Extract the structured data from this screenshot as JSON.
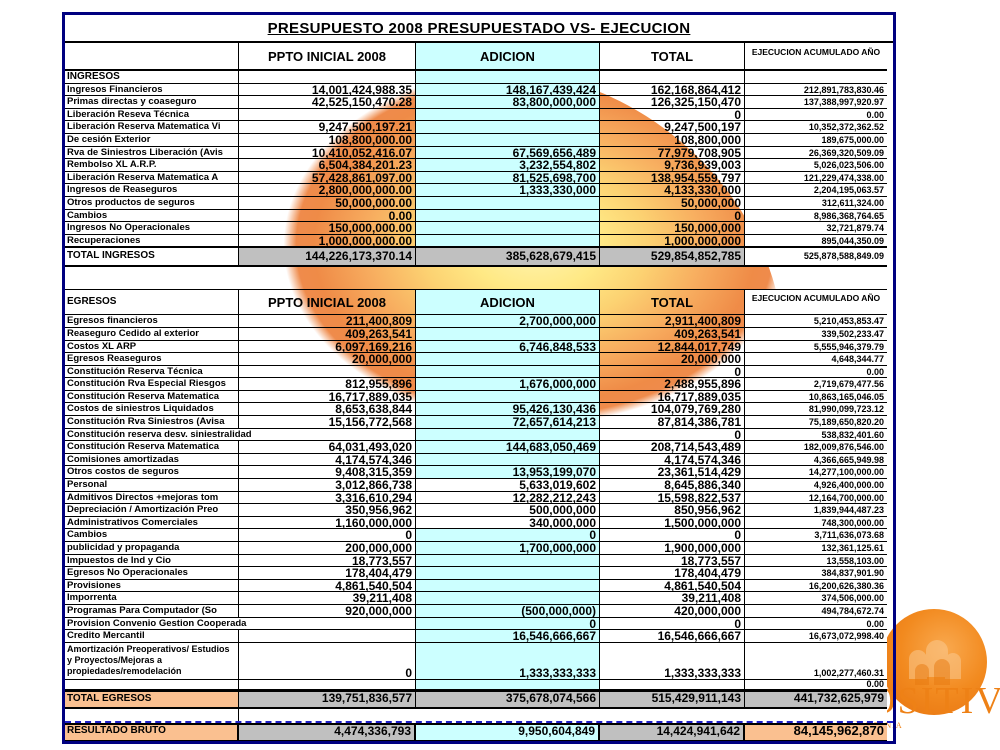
{
  "title": "PRESUPUESTO  2008 PRESUPUESTADO VS- EJECUCION",
  "columns": {
    "label": "",
    "ppto": "PPTO INICIAL 2008",
    "adicion": "ADICION",
    "total": "TOTAL",
    "ejecucion": "EJECUCION  ACUMULADO AÑO"
  },
  "logo": {
    "brand": "POSITIVA",
    "tagline": "Compañía de Seguros",
    "brand_color": "#ee8116",
    "circle_color": "#f28a1f"
  },
  "colors": {
    "adicion_fill": "#CCFFFF",
    "total_fill": "#C0C0C0",
    "highlight_fill": "#FAC090",
    "outer_border": "#000080",
    "dashed_line": "#2020c8"
  },
  "rows": [
    {
      "t": "sec",
      "label": "INGRESOS"
    },
    {
      "t": "d",
      "label": "Ingresos Financieros",
      "ppto": "14,001,424,988.35",
      "adic": "148,167,439,424",
      "total": "162,168,864,412",
      "ejec": "212,891,783,830.46"
    },
    {
      "t": "d",
      "label": "Primas directas y coaseguro",
      "ppto": "42,525,150,470.28",
      "adic": "83,800,000,000",
      "total": "126,325,150,470",
      "ejec": "137,388,997,920.97"
    },
    {
      "t": "d",
      "label": "Liberación Reseva Técnica",
      "ppto": "",
      "adic": "",
      "total": "0",
      "ejec": "0.00"
    },
    {
      "t": "d",
      "label": "Liberación Reserva Matematica Vi",
      "ppto": "9,247,500,197.21",
      "adic": "",
      "total": "9,247,500,197",
      "ejec": "10,352,372,362.52"
    },
    {
      "t": "d",
      "label": "De cesión  Exterior",
      "ppto": "108,800,000.00",
      "adic": "",
      "total": "108,800,000",
      "ejec": "189,675,000.00"
    },
    {
      "t": "d",
      "label": "Rva de Siniestros Liberación (Avis",
      "ppto": "10,410,052,416.07",
      "adic": "67,569,656,489",
      "total": "77,979,708,905",
      "ejec": "26,369,320,509.09"
    },
    {
      "t": "d",
      "label": "Rembolso XL A.R.P.",
      "ppto": "6,504,384,201.23",
      "adic": "3,232,554,802",
      "total": "9,736,939,003",
      "ejec": "5,026,023,506.00"
    },
    {
      "t": "d",
      "label": "Liberación Reserva Matematica A",
      "ppto": "57,428,861,097.00",
      "adic": "81,525,698,700",
      "total": "138,954,559,797",
      "ejec": "121,229,474,338.00"
    },
    {
      "t": "d",
      "label": "Ingresos de Reaseguros",
      "ppto": "2,800,000,000.00",
      "adic": "1,333,330,000",
      "total": "4,133,330,000",
      "ejec": "2,204,195,063.57"
    },
    {
      "t": "d",
      "label": "Otros productos de seguros",
      "ppto": "50,000,000.00",
      "adic": "",
      "total": "50,000,000",
      "ejec": "312,611,324.00"
    },
    {
      "t": "d",
      "label": "Cambios",
      "ppto": "0.00",
      "adic": "",
      "total": "0",
      "ejec": "8,986,368,764.65"
    },
    {
      "t": "d",
      "label": "Ingresos No Operacionales",
      "ppto": "150,000,000.00",
      "adic": "",
      "total": "150,000,000",
      "ejec": "32,721,879.74"
    },
    {
      "t": "d",
      "label": "Recuperaciones",
      "ppto": "1,000,000,000.00",
      "adic": "",
      "total": "1,000,000,000",
      "ejec": "895,044,350.09"
    },
    {
      "t": "tin",
      "label": "TOTAL  INGRESOS",
      "ppto": "144,226,173,370.14",
      "adic": "385,628,679,415",
      "total": "529,854,852,785",
      "ejec": "525,878,588,849.09"
    },
    {
      "t": "gap"
    },
    {
      "t": "h2",
      "label": "EGRESOS"
    },
    {
      "t": "d",
      "label": "Egresos financieros",
      "ppto": "211,400,809",
      "adic": "2,700,000,000",
      "total": "2,911,400,809",
      "ejec": "5,210,453,853.47"
    },
    {
      "t": "d",
      "label": "Reaseguro Cedido al exterior",
      "ppto": "409,263,541",
      "adic": "",
      "total": "409,263,541",
      "ejec": "339,502,233.47"
    },
    {
      "t": "d",
      "label": "Costos XL ARP",
      "ppto": "6,097,169,216",
      "adic": "6,746,848,533",
      "total": "12,844,017,749",
      "ejec": "5,555,946,379.79"
    },
    {
      "t": "d",
      "label": "Egresos Reaseguros",
      "ppto": "20,000,000",
      "adic": "",
      "total": "20,000,000",
      "ejec": "4,648,344.77"
    },
    {
      "t": "d",
      "label": "Constitución Reserva Técnica",
      "ppto": "",
      "adic": "",
      "total": "0",
      "ejec": "0.00"
    },
    {
      "t": "d",
      "label": "Constitución Rva Especial Riesgos",
      "ppto": "812,955,896",
      "adic": "1,676,000,000",
      "total": "2,488,955,896",
      "ejec": "2,719,679,477.56"
    },
    {
      "t": "d",
      "label": "Constitución Reserva Matematica",
      "ppto": "16,717,889,035",
      "adic": "",
      "total": "16,717,889,035",
      "ejec": "10,863,165,046.05"
    },
    {
      "t": "d",
      "label": "Costos de siniestros Liquidados",
      "ppto": "8,653,638,844",
      "adic": "95,426,130,436",
      "total": "104,079,769,280",
      "ejec": "81,990,099,723.12"
    },
    {
      "t": "d",
      "label": "Constitución Rva Siniestros (Avisa",
      "ppto": "15,156,772,568",
      "adic": "72,657,614,213",
      "total": "87,814,386,781",
      "ejec": "75,189,650,820.20"
    },
    {
      "t": "d",
      "lo": true,
      "label": "Constitución reserva desv. siniestralidad",
      "ppto": "",
      "adic": "",
      "total": "0",
      "ejec": "538,832,401.60"
    },
    {
      "t": "d",
      "label": "Constitución Reserva Matematica",
      "ppto": "64,031,493,020",
      "adic": "144,683,050,469",
      "total": "208,714,543,489",
      "ejec": "182,009,876,546.00"
    },
    {
      "t": "d",
      "label": "Comisiones amortizadas",
      "ppto": "4,174,574,346",
      "adic": "",
      "total": "4,174,574,346",
      "ejec": "4,366,665,949.98"
    },
    {
      "t": "d",
      "label": "Otros costos de seguros",
      "ppto": "9,408,315,359",
      "adic": "13,953,199,070",
      "total": "23,361,514,429",
      "ejec": "14,277,100,000.00"
    },
    {
      "t": "d",
      "clear": true,
      "label": "Personal",
      "ppto": "3,012,866,738",
      "adic": "5,633,019,602",
      "total": "8,645,886,340",
      "ejec": "4,926,400,000.00"
    },
    {
      "t": "d",
      "clear": true,
      "label": "Admitivos Directos +mejoras tom",
      "ppto": "3,316,610,294",
      "adic": "12,282,212,243",
      "total": "15,598,822,537",
      "ejec": "12,164,700,000.00"
    },
    {
      "t": "d",
      "clear": true,
      "label": "Depreciación / Amortización Preo",
      "ppto": "350,956,962",
      "adic": "500,000,000",
      "total": "850,956,962",
      "ejec": "1,839,944,487.23"
    },
    {
      "t": "d",
      "clear": true,
      "label": "Administrativos Comerciales",
      "ppto": "1,160,000,000",
      "adic": "340,000,000",
      "total": "1,500,000,000",
      "ejec": "748,300,000.00"
    },
    {
      "t": "d",
      "label": "Cambios",
      "ppto": "0",
      "adic": "0",
      "total": "0",
      "ejec": "3,711,636,073.68"
    },
    {
      "t": "d",
      "label": "publicidad y propaganda",
      "ppto": "200,000,000",
      "adic": "1,700,000,000",
      "total": "1,900,000,000",
      "ejec": "132,361,125.61"
    },
    {
      "t": "d",
      "label": "Impuestos de Ind y Cio",
      "ppto": "18,773,557",
      "adic": "",
      "total": "18,773,557",
      "ejec": "13,558,103.00"
    },
    {
      "t": "d",
      "label": "Egresos No Operacionales",
      "ppto": "178,404,479",
      "adic": "",
      "total": "178,404,479",
      "ejec": "384,837,901.90"
    },
    {
      "t": "d",
      "label": "Provisiones",
      "ppto": "4,861,540,504",
      "adic": "",
      "total": "4,861,540,504",
      "ejec": "16,200,626,380.36"
    },
    {
      "t": "d",
      "label": "Imporrenta",
      "ppto": "39,211,408",
      "adic": "",
      "total": "39,211,408",
      "ejec": "374,506,000.00"
    },
    {
      "t": "d",
      "label": "Programas Para Computador (So",
      "ppto": "920,000,000",
      "adic": "(500,000,000)",
      "total": "420,000,000",
      "ejec": "494,784,672.74"
    },
    {
      "t": "d",
      "lo": true,
      "label": "Provision Convenio Gestion Cooperada",
      "ppto": "",
      "adic": "0",
      "total": "0",
      "ejec": "0.00"
    },
    {
      "t": "d",
      "label": "Credito Mercantil",
      "ppto": "",
      "adic": "16,546,666,667",
      "total": "16,546,666,667",
      "ejec": "16,673,072,998.40"
    },
    {
      "t": "ml3",
      "label": "Amortización Preoperativos/ Estudios y Proyectos/Mejoras a propiedades/remodelación",
      "ppto": "0",
      "adic": "1,333,333,333",
      "total": "1,333,333,333",
      "ejec": "1,002,277,460.31"
    },
    {
      "t": "blank",
      "label": "",
      "ppto": "",
      "adic": "",
      "total": "",
      "ejec": "0.00"
    },
    {
      "t": "teg",
      "label": "TOTAL  EGRESOS",
      "ppto": "139,751,836,577",
      "adic": "375,678,074,566",
      "total": "515,429,911,143",
      "ejec": "441,732,625,979"
    },
    {
      "t": "dash"
    },
    {
      "t": "res",
      "label": "RESULTADO BRUTO",
      "ppto": "4,474,336,793",
      "adic": "9,950,604,849",
      "total": "14,424,941,642",
      "ejec": "84,145,962,870"
    }
  ]
}
